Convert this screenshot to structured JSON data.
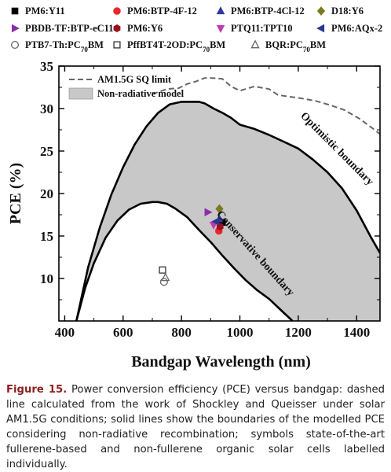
{
  "chart_data": {
    "type": "line",
    "xlabel": "Bandgap Wavelength (nm)",
    "ylabel": "PCE (%)",
    "xlim": [
      380,
      1480
    ],
    "ylim": [
      5,
      35
    ],
    "x_ticks": [
      400,
      600,
      800,
      1000,
      1200,
      1400
    ],
    "y_ticks": [
      10,
      15,
      20,
      25,
      30,
      35
    ],
    "grid": false,
    "legend_position": "top, above plot",
    "inner_legend": {
      "position": "top-left",
      "sq_limit": "AM1.5G SQ limit",
      "non_radiative": "Non-radiative model"
    },
    "series": [
      {
        "name": "AM1.5G SQ limit",
        "style": "dashed",
        "color": "#666666",
        "x": [
          700,
          750,
          790,
          820,
          850,
          880,
          900,
          940,
          970,
          1000,
          1050,
          1100,
          1130,
          1170,
          1210,
          1260,
          1310,
          1360,
          1410,
          1450,
          1480
        ],
        "y": [
          31.7,
          32.3,
          32.4,
          32.9,
          33.2,
          33.6,
          33.6,
          33.5,
          32.6,
          32.1,
          32.6,
          32.3,
          31.6,
          31.4,
          31.2,
          30.9,
          30.4,
          29.8,
          28.8,
          27.8,
          27.0
        ]
      },
      {
        "name": "Optimistic boundary",
        "style": "solid",
        "color": "#000000",
        "x": [
          440,
          480,
          520,
          560,
          600,
          640,
          680,
          720,
          760,
          800,
          830,
          860,
          880,
          910,
          940,
          970,
          1000,
          1050,
          1100,
          1150,
          1200,
          1250,
          1300,
          1350,
          1400,
          1450,
          1480
        ],
        "y": [
          5.0,
          11.3,
          16.0,
          19.9,
          23.1,
          25.8,
          27.9,
          29.5,
          30.5,
          30.8,
          30.8,
          30.8,
          30.6,
          30.0,
          29.5,
          28.9,
          28.1,
          27.6,
          26.9,
          26.1,
          25.3,
          24.0,
          22.5,
          20.6,
          18.0,
          14.8,
          13.0
        ]
      },
      {
        "name": "Conservative boundary",
        "style": "solid",
        "color": "#000000",
        "x": [
          440,
          470,
          500,
          540,
          580,
          620,
          660,
          700,
          720,
          750,
          780,
          820,
          860,
          900,
          940,
          980,
          1020,
          1060,
          1100,
          1140,
          1180
        ],
        "y": [
          5.0,
          8.9,
          11.8,
          14.8,
          16.8,
          18.1,
          18.8,
          19.0,
          19.0,
          18.8,
          18.2,
          17.2,
          15.7,
          14.3,
          12.7,
          11.2,
          9.8,
          8.6,
          7.6,
          6.3,
          5.0
        ]
      }
    ],
    "markers": [
      {
        "name": "PM6:Y11",
        "symbol": "square",
        "color": "#000000",
        "filled": true,
        "x": 940,
        "y": 16.6
      },
      {
        "name": "PM6:BTP-4F-12",
        "symbol": "circle",
        "color": "#e8262c",
        "filled": true,
        "x": 928,
        "y": 15.6
      },
      {
        "name": "PM6:BTP-4Cl-12",
        "symbol": "triangle-up",
        "color": "#2e3a9f",
        "filled": true,
        "x": 930,
        "y": 17.0
      },
      {
        "name": "D18:Y6",
        "symbol": "diamond",
        "color": "#7a7a1f",
        "filled": true,
        "x": 930,
        "y": 18.2
      },
      {
        "name": "PBDB-TF:BTP-eC11",
        "symbol": "triangle-right",
        "color": "#8b2fa8",
        "filled": true,
        "x": 890,
        "y": 17.8
      },
      {
        "name": "PM6:Y6",
        "symbol": "hexagon",
        "color": "#9a1020",
        "filled": true,
        "x": 932,
        "y": 16.1
      },
      {
        "name": "PTQ11:TPT10",
        "symbol": "triangle-down",
        "color": "#c23ab0",
        "filled": true,
        "x": 910,
        "y": 16.3
      },
      {
        "name": "PM6:AQx-2",
        "symbol": "triangle-left",
        "color": "#2a3790",
        "filled": true,
        "x": 918,
        "y": 16.7
      },
      {
        "name": "PTB7-Th:PC70BM",
        "symbol": "circle",
        "color": "#666666",
        "filled": false,
        "x": 740,
        "y": 9.6
      },
      {
        "name": "PffBT4T-2OD:PC70BM",
        "symbol": "square",
        "color": "#333333",
        "filled": false,
        "x": 735,
        "y": 11.0
      },
      {
        "name": "BQR:PC70BM",
        "symbol": "triangle-up",
        "color": "#666666",
        "filled": false,
        "x": 745,
        "y": 10.1
      }
    ],
    "legend_rows": [
      [
        {
          "label": "PM6:Y11",
          "symbol": "square",
          "color": "#000000",
          "filled": true
        },
        {
          "label": "PM6:BTP-4F-12",
          "symbol": "circle",
          "color": "#e8262c",
          "filled": true
        },
        {
          "label": "PM6:BTP-4Cl-12",
          "symbol": "triangle-up",
          "color": "#2e3a9f",
          "filled": true
        },
        {
          "label": "D18:Y6",
          "symbol": "diamond",
          "color": "#7a7a1f",
          "filled": true
        }
      ],
      [
        {
          "label": "PBDB-TF:BTP-eC11",
          "symbol": "triangle-right",
          "color": "#8b2fa8",
          "filled": true
        },
        {
          "label": "PM6:Y6",
          "symbol": "hexagon",
          "color": "#9a1020",
          "filled": true
        },
        {
          "label": "PTQ11:TPT10",
          "symbol": "triangle-down",
          "color": "#c23ab0",
          "filled": true
        },
        {
          "label": "PM6:AQx-2",
          "symbol": "triangle-left",
          "color": "#2a3790",
          "filled": true
        }
      ],
      [
        {
          "label": "PTB7-Th:PC",
          "sub": "70",
          "after": "BM",
          "symbol": "circle",
          "color": "#666666",
          "filled": false
        },
        {
          "label": "PffBT4T-2OD:PC",
          "sub": "70",
          "after": "BM",
          "symbol": "square",
          "color": "#333333",
          "filled": false
        },
        {
          "label": "BQR:PC",
          "sub": "70",
          "after": "BM",
          "symbol": "triangle-up",
          "color": "#666666",
          "filled": false
        }
      ]
    ],
    "annotations": {
      "optimistic": "Optimistic boundary",
      "conservative": "Conservative boundary"
    },
    "colors": {
      "fill": "#c8c8c8",
      "sq_line": "#666666",
      "boundary": "#000000"
    }
  },
  "caption": {
    "label": "Figure 15.",
    "text": "Power conversion efficiency (PCE) versus bandgap: dashed line calculated from the work of Shockley and Queisser under solar AM1.5G conditions; solid lines show the boundaries of the modelled PCE considering non-radiative recombination; symbols state-of-the-art fullerene-based and non-fullerene organic solar cells labelled individually."
  }
}
